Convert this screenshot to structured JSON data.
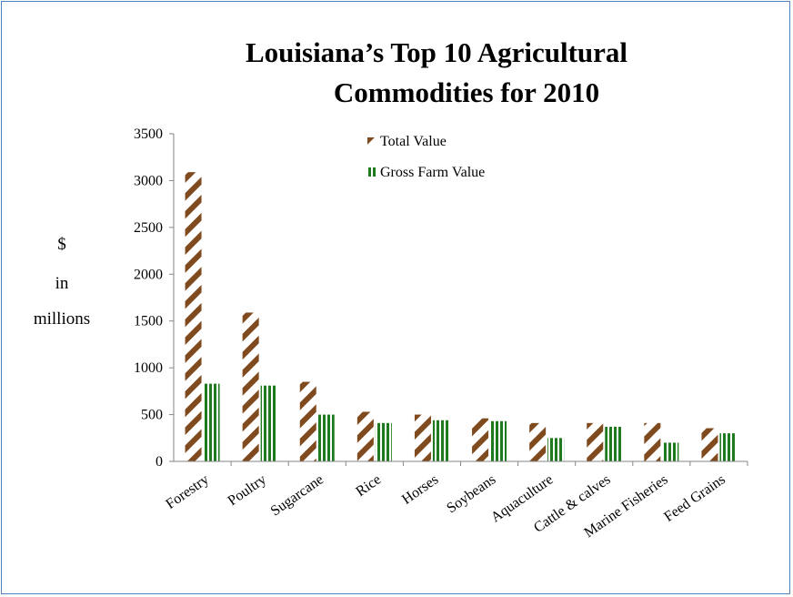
{
  "chart_data": {
    "type": "bar",
    "title_line1": "Louisiana’s  Top  10 Agricultural",
    "title_line2": "Commodities  for  2010",
    "ylabel_line1": "$",
    "ylabel_line2": "in",
    "ylabel_line3": "millions",
    "ylim": [
      0,
      3500
    ],
    "yticks": [
      0,
      500,
      1000,
      1500,
      2000,
      2500,
      3000,
      3500
    ],
    "categories": [
      "Forestry",
      "Poultry",
      "Sugarcane",
      "Rice",
      "Horses",
      "Soybeans",
      "Aquaculture",
      "Cattle & calves",
      "Marine Fisheries",
      "Feed Grains"
    ],
    "series": [
      {
        "name": "Total Value",
        "color": "#7f4a1e",
        "pattern": "diagonal-stripes",
        "values": [
          3090,
          1590,
          850,
          530,
          500,
          460,
          410,
          410,
          410,
          355
        ]
      },
      {
        "name": "Gross Farm Value",
        "color": "#1f7a1f",
        "pattern": "vertical-stripes",
        "values": [
          830,
          810,
          500,
          410,
          440,
          430,
          250,
          370,
          200,
          300
        ]
      }
    ],
    "legend_position": "top-center",
    "grid": false
  }
}
